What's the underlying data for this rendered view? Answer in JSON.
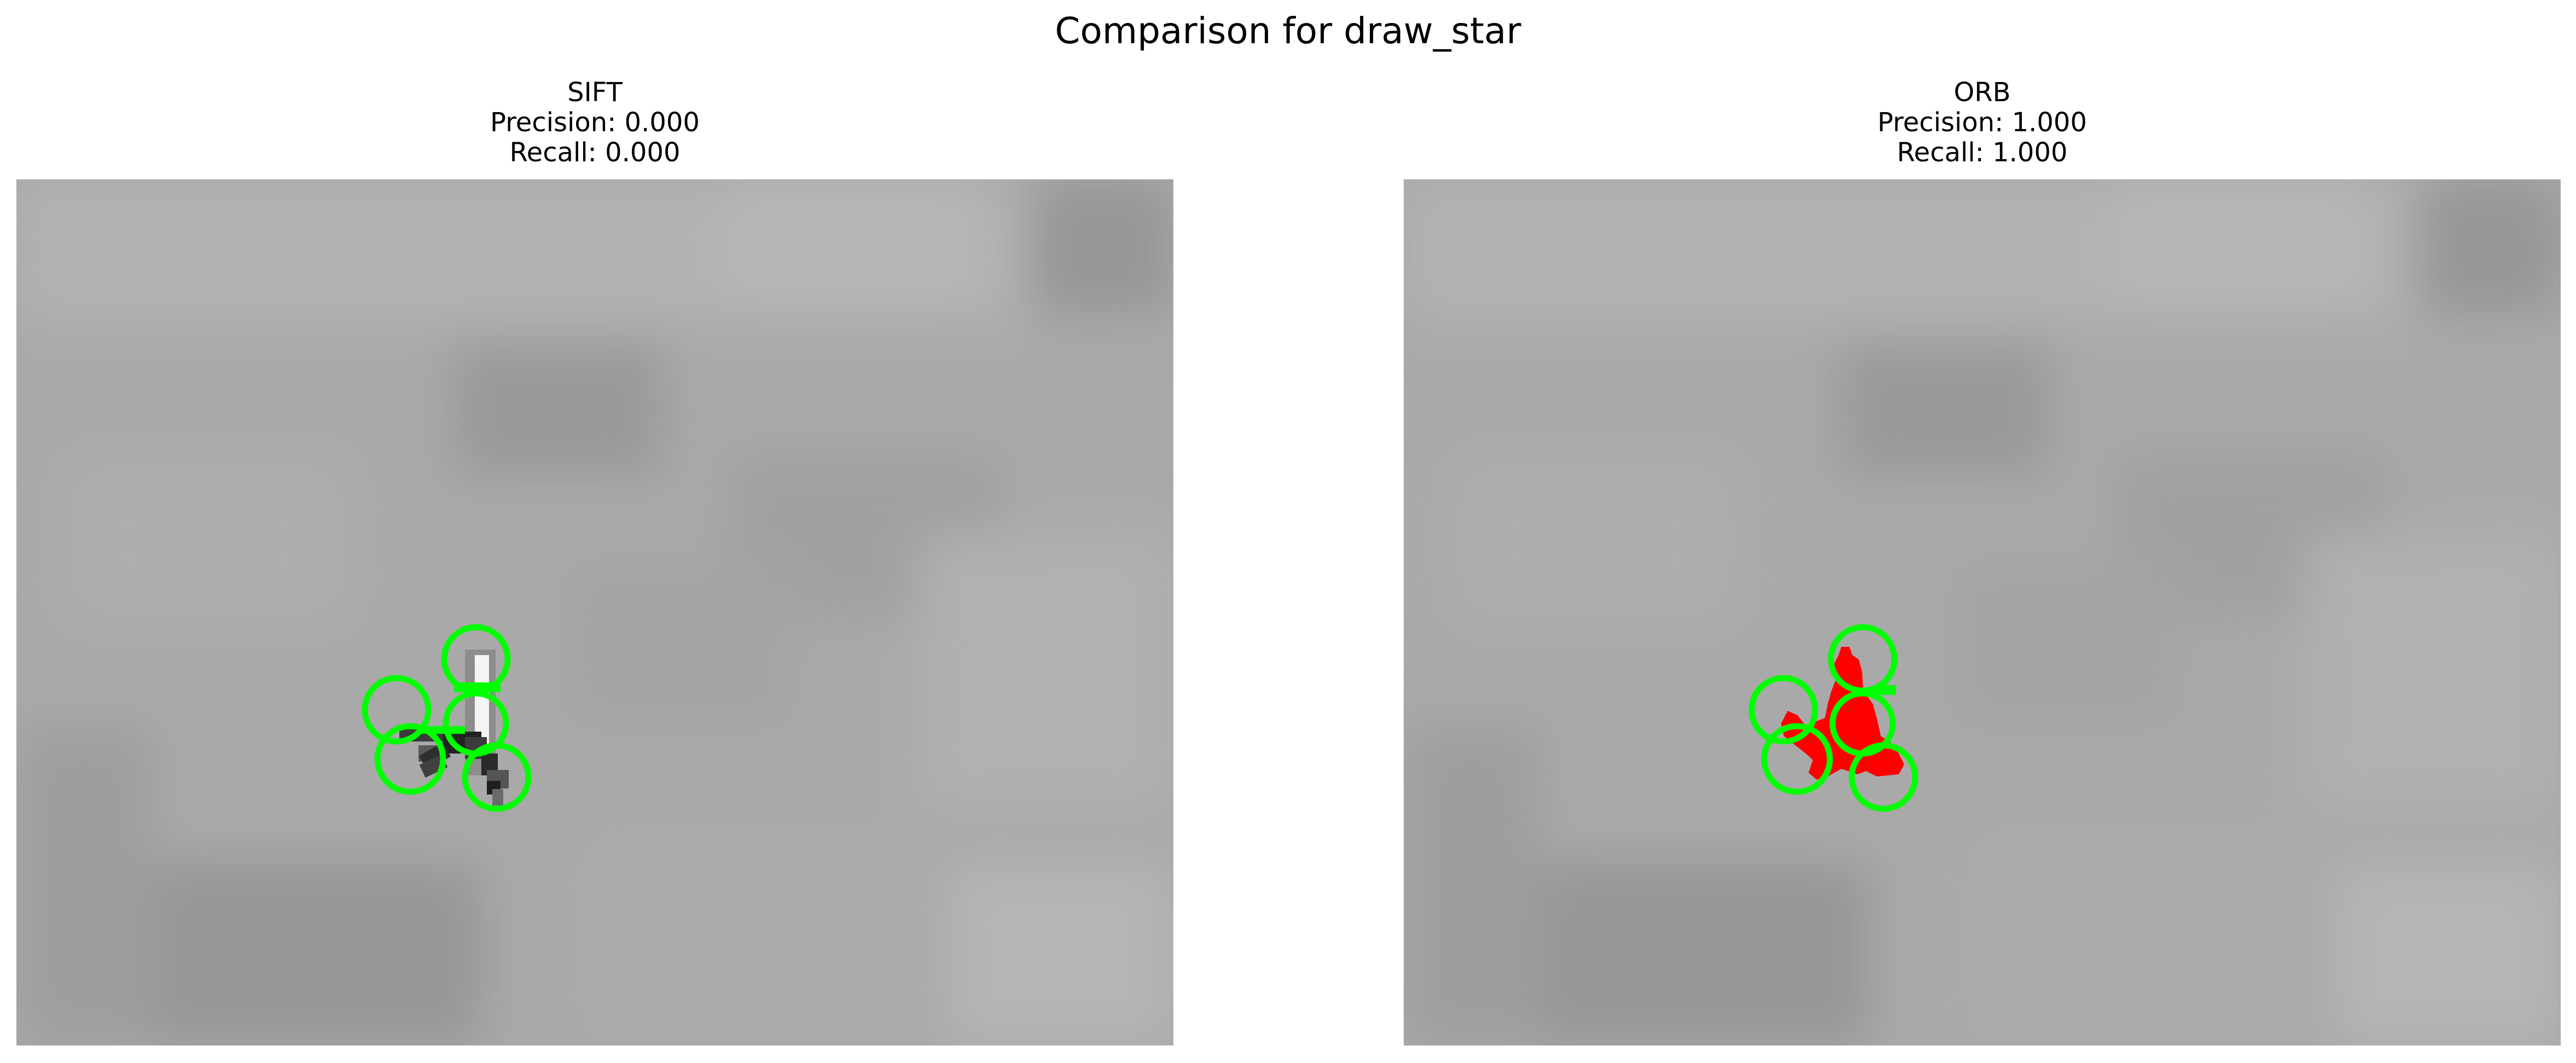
{
  "figure": {
    "title": "Comparison for draw_star"
  },
  "panels": [
    {
      "method": "SIFT",
      "precision_label": "Precision: 0.000",
      "recall_label": "Recall: 0.000"
    },
    {
      "method": "ORB",
      "precision_label": "Precision: 1.000",
      "recall_label": "Recall: 1.000"
    }
  ],
  "colors": {
    "keypoint_circle": "#00ff00",
    "orb_overlay": "#ff0000",
    "background_gray": "#a8a8a8"
  }
}
